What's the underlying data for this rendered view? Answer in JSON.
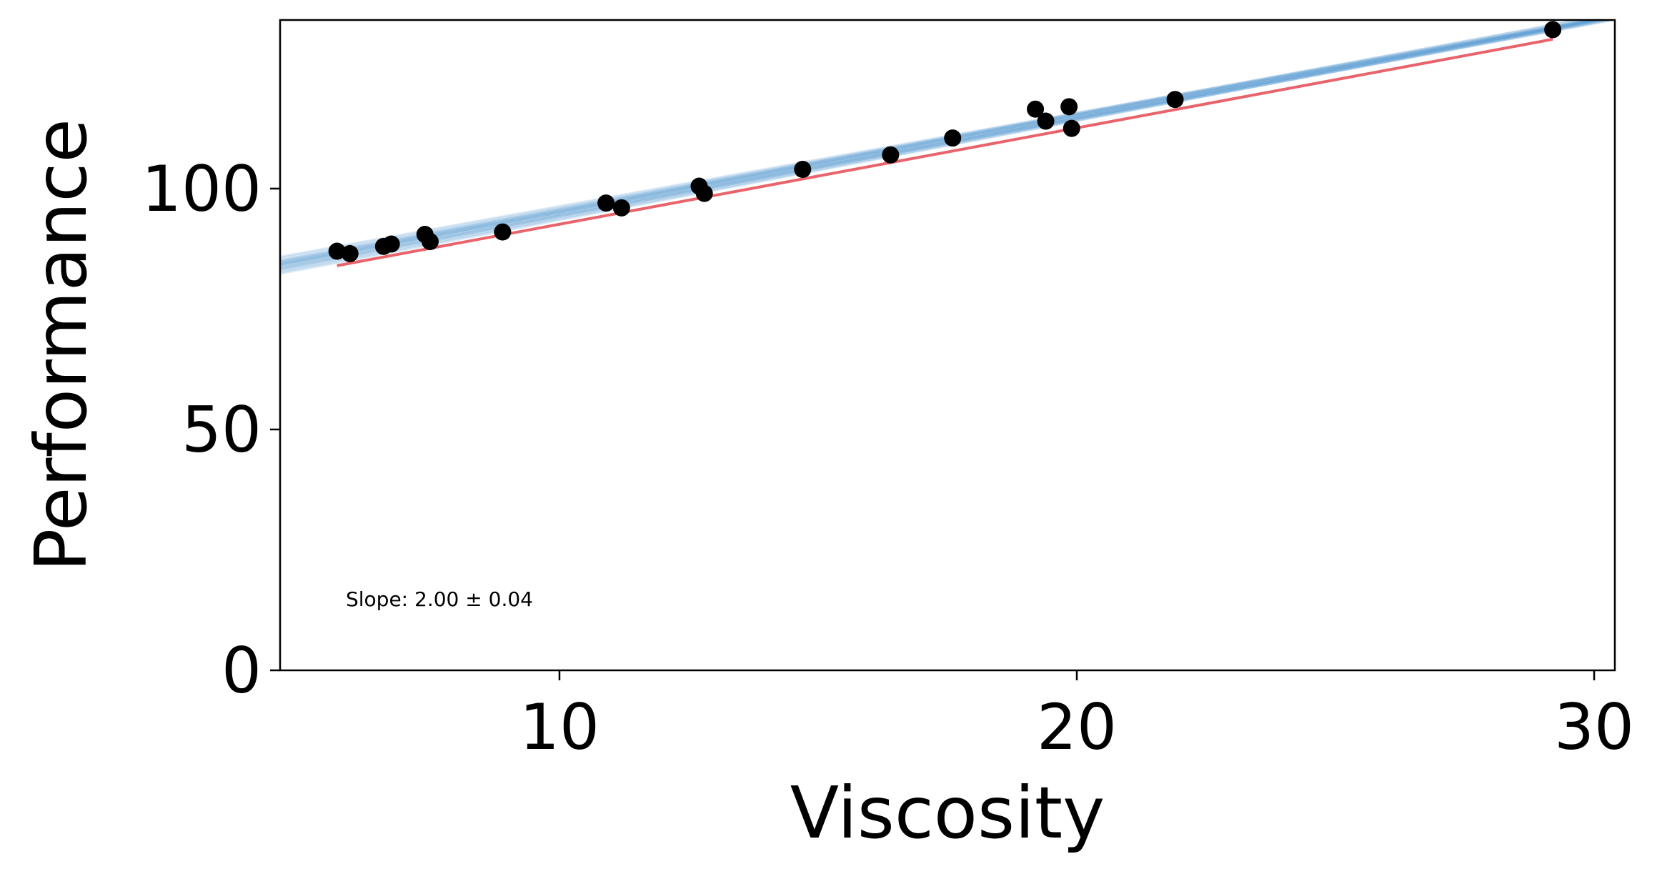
{
  "chart_data": {
    "type": "scatter",
    "title": "",
    "xlabel": "Viscosity",
    "ylabel": "Performance",
    "xlim": [
      4.6,
      30.4
    ],
    "ylim": [
      0,
      135
    ],
    "xticks": [
      10,
      20,
      30
    ],
    "yticks": [
      0,
      50,
      100
    ],
    "grid": false,
    "annotation": "Slope: 2.00 ± 0.04",
    "colors": {
      "points": "#000000",
      "true_line": "#e8636b",
      "posterior_lines": "#5b9bd5"
    },
    "points": [
      {
        "x": 5.7,
        "y": 87.0
      },
      {
        "x": 5.95,
        "y": 86.5
      },
      {
        "x": 6.6,
        "y": 88.0
      },
      {
        "x": 6.75,
        "y": 88.5
      },
      {
        "x": 7.4,
        "y": 90.5
      },
      {
        "x": 7.5,
        "y": 89.0
      },
      {
        "x": 8.9,
        "y": 91.0
      },
      {
        "x": 10.9,
        "y": 97.0
      },
      {
        "x": 11.2,
        "y": 96.0
      },
      {
        "x": 12.7,
        "y": 100.5
      },
      {
        "x": 12.8,
        "y": 99.0
      },
      {
        "x": 14.7,
        "y": 104.0
      },
      {
        "x": 16.4,
        "y": 107.0
      },
      {
        "x": 17.6,
        "y": 110.5
      },
      {
        "x": 19.2,
        "y": 116.5
      },
      {
        "x": 19.4,
        "y": 114.0
      },
      {
        "x": 19.85,
        "y": 117.0
      },
      {
        "x": 19.9,
        "y": 112.5
      },
      {
        "x": 21.9,
        "y": 118.5
      },
      {
        "x": 29.2,
        "y": 133.0
      }
    ],
    "true_line": {
      "slope": 2.0,
      "intercept": 72.6,
      "x_range": [
        5.7,
        29.2
      ]
    },
    "posterior_lines": [
      {
        "slope": 1.98,
        "intercept": 75.6
      },
      {
        "slope": 2.02,
        "intercept": 74.2
      },
      {
        "slope": 1.96,
        "intercept": 76.1
      },
      {
        "slope": 2.04,
        "intercept": 73.8
      },
      {
        "slope": 2.0,
        "intercept": 75.0
      },
      {
        "slope": 1.97,
        "intercept": 75.4
      },
      {
        "slope": 2.03,
        "intercept": 74.0
      },
      {
        "slope": 1.99,
        "intercept": 75.8
      },
      {
        "slope": 2.01,
        "intercept": 74.6
      },
      {
        "slope": 1.95,
        "intercept": 76.6
      },
      {
        "slope": 2.05,
        "intercept": 73.2
      },
      {
        "slope": 2.0,
        "intercept": 74.4
      },
      {
        "slope": 1.98,
        "intercept": 74.9
      },
      {
        "slope": 2.02,
        "intercept": 74.9
      },
      {
        "slope": 1.94,
        "intercept": 76.9
      },
      {
        "slope": 2.06,
        "intercept": 72.9
      },
      {
        "slope": 1.99,
        "intercept": 75.2
      },
      {
        "slope": 2.01,
        "intercept": 75.3
      },
      {
        "slope": 1.97,
        "intercept": 75.9
      },
      {
        "slope": 2.03,
        "intercept": 73.6
      }
    ]
  }
}
